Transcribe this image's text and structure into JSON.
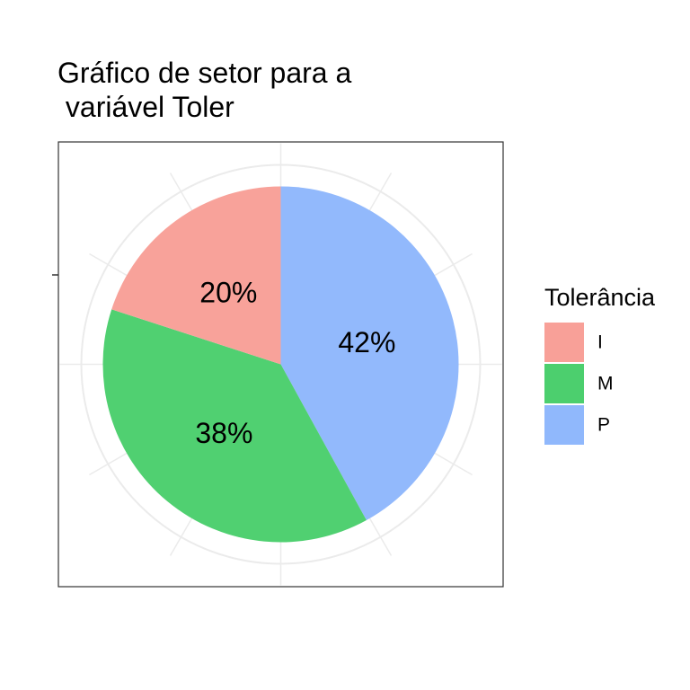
{
  "chart_data": {
    "type": "pie",
    "title": "Gráfico de setor para a\n variável Toler",
    "legend_title": "Tolerância",
    "legend_position": "right",
    "grid": true,
    "categories": [
      "I",
      "M",
      "P"
    ],
    "values": [
      20,
      38,
      42
    ],
    "labels": [
      "20%",
      "38%",
      "42%"
    ],
    "colors": [
      "#F8A098",
      "#4CCF6E",
      "#90B8FC"
    ]
  }
}
